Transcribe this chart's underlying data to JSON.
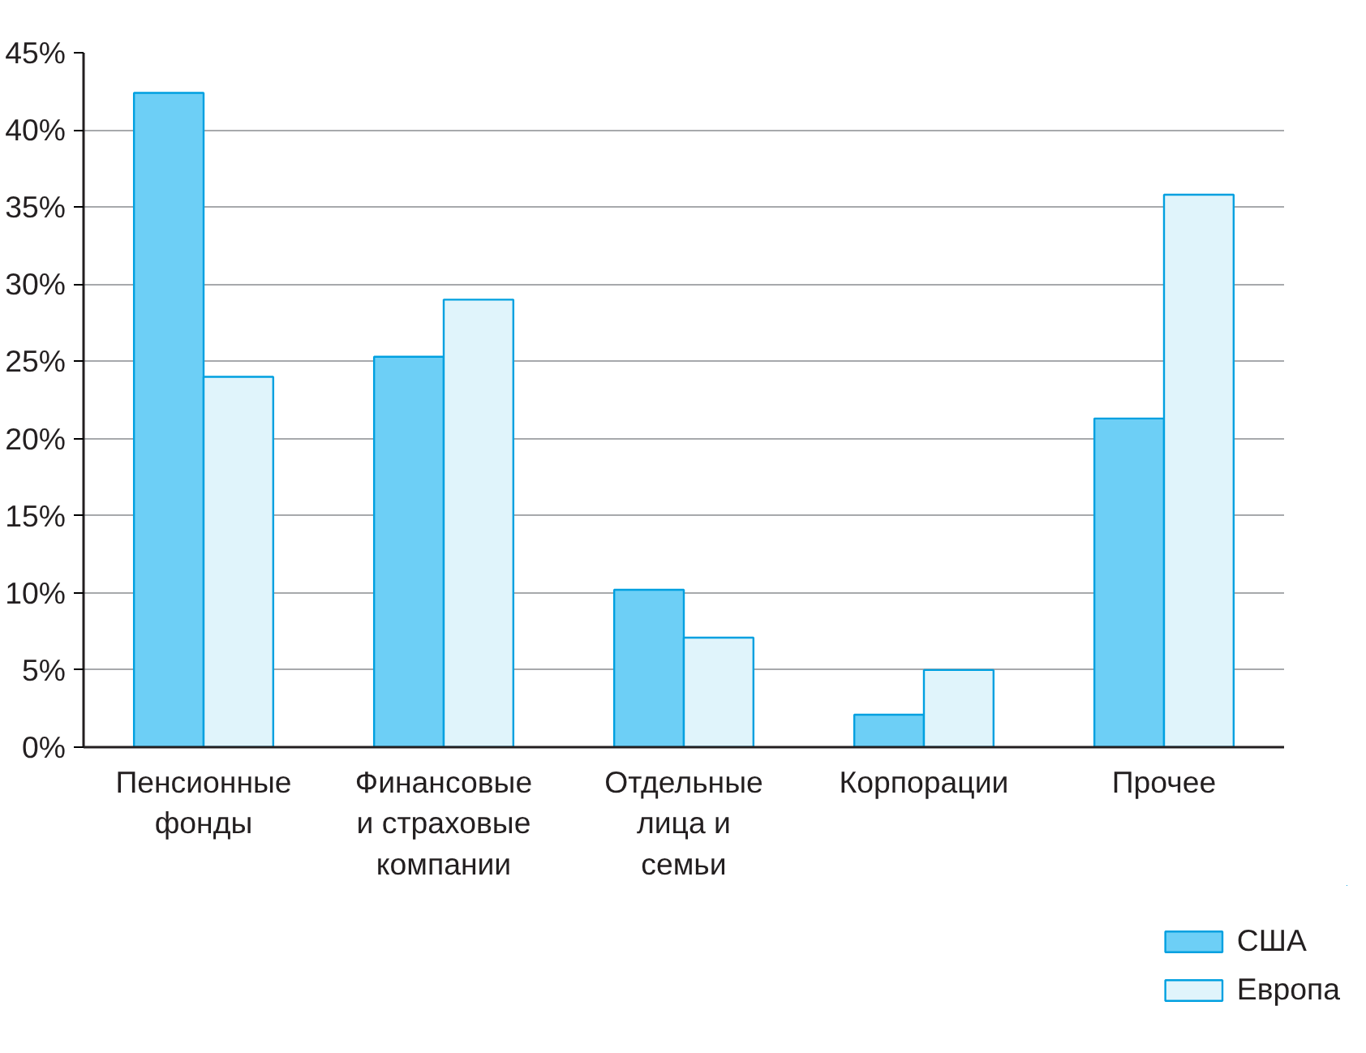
{
  "chart_data": {
    "type": "bar",
    "categories": [
      "Пенсионные\nфонды",
      "Финансовые\nи страховые\nкомпании",
      "Отдельные\nлица и\nсемьи",
      "Корпорации",
      "Прочее"
    ],
    "series": [
      {
        "name": "США",
        "color": "#6dcff6",
        "values": [
          42.4,
          25.3,
          10.2,
          2.1,
          21.3
        ]
      },
      {
        "name": "Европа",
        "color": "#e0f4fb",
        "values": [
          24.0,
          29.0,
          7.1,
          5.0,
          35.8
        ]
      }
    ],
    "ylim": [
      0,
      45
    ],
    "yticks": [
      {
        "value": 0,
        "label": "0%"
      },
      {
        "value": 5,
        "label": "5%"
      },
      {
        "value": 10,
        "label": "10%"
      },
      {
        "value": 15,
        "label": "15%"
      },
      {
        "value": 20,
        "label": "20%"
      },
      {
        "value": 25,
        "label": "25%"
      },
      {
        "value": 30,
        "label": "30%"
      },
      {
        "value": 35,
        "label": "35%"
      },
      {
        "value": 40,
        "label": "40%"
      },
      {
        "value": 45,
        "label": "45%"
      }
    ],
    "grid": "y",
    "legend": "bottom right"
  }
}
